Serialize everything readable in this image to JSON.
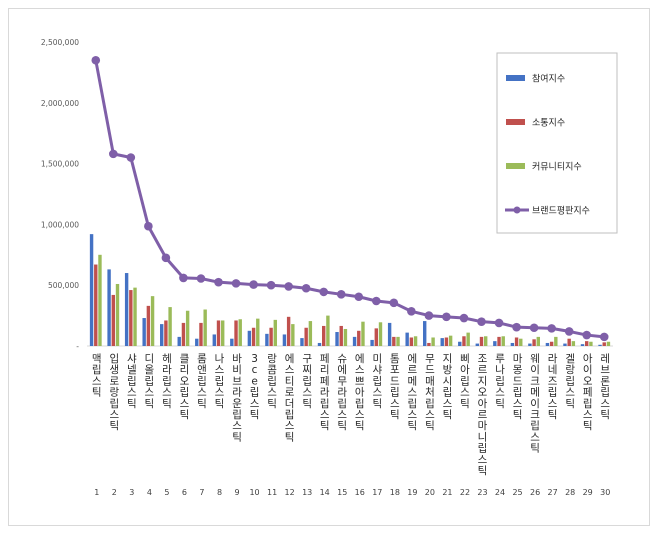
{
  "chart_data": {
    "type": "bar",
    "title": "",
    "xlabel": "",
    "ylabel": "",
    "ylim": [
      0,
      2500000
    ],
    "yticks": [
      0,
      500000,
      1000000,
      1500000,
      2000000,
      2500000
    ],
    "ytick_labels": [
      "-",
      "500,000",
      "1,000,000",
      "1,500,000",
      "2,000,000",
      "2,500,000"
    ],
    "grid": false,
    "legend_position": "right",
    "ranks": [
      "1",
      "2",
      "3",
      "4",
      "5",
      "6",
      "7",
      "8",
      "9",
      "10",
      "11",
      "12",
      "13",
      "14",
      "15",
      "16",
      "17",
      "18",
      "19",
      "20",
      "21",
      "22",
      "23",
      "24",
      "25",
      "26",
      "27",
      "28",
      "29",
      "30"
    ],
    "categories": [
      "맥립스틱",
      "입생로랑립스틱",
      "샤넬립스틱",
      "디올립스틱",
      "헤라립스틱",
      "클리오립스틱",
      "롬앤립스틱",
      "나스립스틱",
      "바비브라운립스틱",
      "3ce립스틱",
      "랑콤립스틱",
      "에스티로더립스틱",
      "구찌립스틱",
      "페리페라립스틱",
      "슈에무라립스틱",
      "에스쁘아립스틱",
      "미샤립스틱",
      "톰포드립스틱",
      "에르메스립스틱",
      "무드매처립스틱",
      "지방시립스틱",
      "삐아립스틱",
      "조르지오아르마니립스틱",
      "루나립스틱",
      "마몽드립스틱",
      "웨이크메이크립스틱",
      "라네즈립스틱",
      "겔랑립스틱",
      "아이오페립스틱",
      "레브론립스틱"
    ],
    "series": [
      {
        "name": "참여지수",
        "type": "bar",
        "color": "#4472c4",
        "values": [
          920000,
          630000,
          600000,
          230000,
          180000,
          75000,
          60000,
          95000,
          60000,
          125000,
          100000,
          95000,
          65000,
          25000,
          115000,
          75000,
          50000,
          190000,
          110000,
          205000,
          65000,
          35000,
          20000,
          40000,
          25000,
          20000,
          25000,
          20000,
          15000,
          10000
        ]
      },
      {
        "name": "소통지수",
        "type": "bar",
        "color": "#c0504d",
        "values": [
          670000,
          420000,
          460000,
          330000,
          210000,
          190000,
          190000,
          210000,
          210000,
          150000,
          150000,
          240000,
          150000,
          165000,
          165000,
          125000,
          145000,
          75000,
          70000,
          25000,
          70000,
          80000,
          75000,
          75000,
          70000,
          55000,
          35000,
          60000,
          40000,
          30000
        ]
      },
      {
        "name": "커뮤니티지수",
        "type": "bar",
        "color": "#9bbb59",
        "values": [
          750000,
          510000,
          480000,
          410000,
          320000,
          290000,
          300000,
          210000,
          220000,
          225000,
          215000,
          180000,
          205000,
          250000,
          140000,
          200000,
          195000,
          75000,
          80000,
          70000,
          85000,
          110000,
          80000,
          80000,
          60000,
          75000,
          75000,
          40000,
          35000,
          35000
        ]
      },
      {
        "name": "브랜드평판지수",
        "type": "line",
        "color": "#7f5fa8",
        "values": [
          2350000,
          1580000,
          1550000,
          985000,
          725000,
          560000,
          555000,
          525000,
          515000,
          505000,
          500000,
          490000,
          475000,
          445000,
          425000,
          405000,
          370000,
          355000,
          285000,
          250000,
          240000,
          230000,
          200000,
          190000,
          155000,
          150000,
          145000,
          120000,
          90000,
          75000
        ]
      }
    ]
  }
}
